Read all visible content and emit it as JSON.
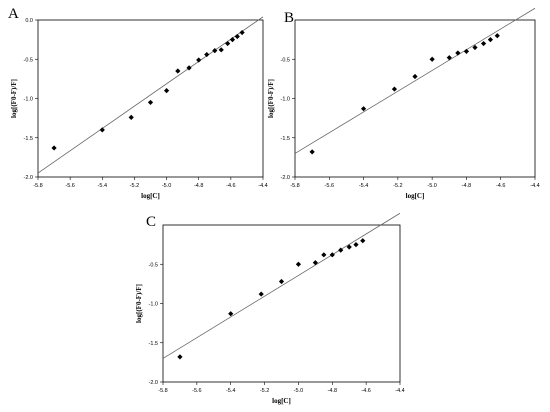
{
  "chart_data": [
    {
      "type": "scatter",
      "panel": "A",
      "xlabel": "log[C]",
      "ylabel": "log[(F0-F)/F]",
      "xlim": [
        -5.8,
        -4.4
      ],
      "ylim": [
        -2.0,
        0.0
      ],
      "xticks": [
        "-5.8",
        "-5.6",
        "-5.4",
        "-5.2",
        "-5.0",
        "-4.8",
        "-4.6",
        "-4.4"
      ],
      "yticks": [
        "0.0",
        "-0.5",
        "-1.0",
        "-1.5",
        "-2.0"
      ],
      "fit_line": {
        "x": [
          -5.8,
          -4.4
        ],
        "y": [
          -1.95,
          0.04
        ]
      },
      "x": [
        -5.7,
        -5.4,
        -5.22,
        -5.1,
        -5.0,
        -4.93,
        -4.86,
        -4.8,
        -4.75,
        -4.7,
        -4.66,
        -4.62,
        -4.59,
        -4.56,
        -4.53
      ],
      "y": [
        -1.63,
        -1.4,
        -1.24,
        -1.05,
        -0.9,
        -0.65,
        -0.61,
        -0.51,
        -0.44,
        -0.39,
        -0.38,
        -0.3,
        -0.25,
        -0.21,
        -0.16
      ]
    },
    {
      "type": "scatter",
      "panel": "B",
      "xlabel": "log[C]",
      "ylabel": "log[(F0-F)/F]",
      "xlim": [
        -5.8,
        -4.4
      ],
      "ylim": [
        -2.0,
        0.0
      ],
      "xticks": [
        "-5.8",
        "-5.6",
        "-5.4",
        "-5.2",
        "-5.0",
        "-4.8",
        "-4.6",
        "-4.4"
      ],
      "yticks": [
        "-0.5",
        "-1.0",
        "-1.5",
        "-2.0"
      ],
      "fit_line": {
        "x": [
          -5.8,
          -4.4
        ],
        "y": [
          -1.7,
          0.15
        ]
      },
      "x": [
        -5.7,
        -5.4,
        -5.22,
        -5.1,
        -5.0,
        -4.9,
        -4.85,
        -4.8,
        -4.75,
        -4.7,
        -4.66,
        -4.62
      ],
      "y": [
        -1.68,
        -1.13,
        -0.88,
        -0.72,
        -0.5,
        -0.48,
        -0.42,
        -0.4,
        -0.35,
        -0.3,
        -0.25,
        -0.2
      ]
    },
    {
      "type": "scatter",
      "panel": "C",
      "xlabel": "log[C]",
      "ylabel": "log[(F0-F)/F]",
      "xlim": [
        -5.8,
        -4.4
      ],
      "ylim": [
        -2.0,
        0.0
      ],
      "xticks": [
        "-5.8",
        "-5.6",
        "-5.4",
        "-5.2",
        "-5.0",
        "-4.8",
        "-4.6",
        "-4.4"
      ],
      "yticks": [
        "-0.5",
        "-1.0",
        "-1.5",
        "-2.0"
      ],
      "fit_line": {
        "x": [
          -5.8,
          -4.4
        ],
        "y": [
          -1.7,
          0.15
        ]
      },
      "x": [
        -5.7,
        -5.4,
        -5.22,
        -5.1,
        -5.0,
        -4.9,
        -4.85,
        -4.8,
        -4.75,
        -4.7,
        -4.66,
        -4.62
      ],
      "y": [
        -1.68,
        -1.13,
        -0.88,
        -0.72,
        -0.5,
        -0.48,
        -0.38,
        -0.38,
        -0.32,
        -0.28,
        -0.25,
        -0.2
      ]
    }
  ]
}
